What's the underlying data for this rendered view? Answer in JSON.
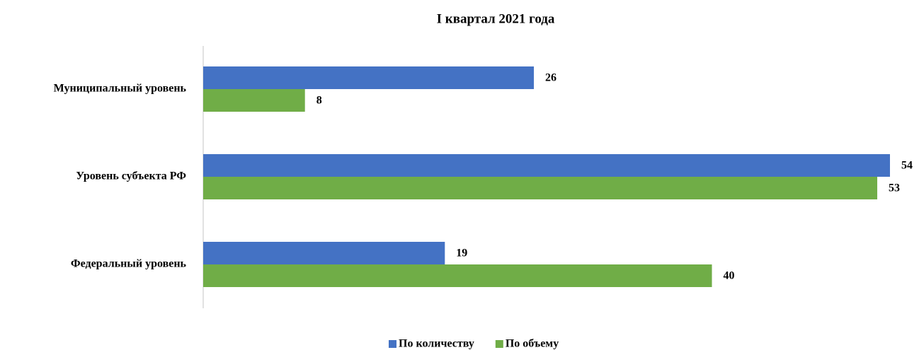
{
  "chart_data": {
    "type": "hbar",
    "title": "I квартал 2021 года",
    "categories": [
      "Муниципальный уровень",
      "Уровень субъекта РФ",
      "Федеральный уровень"
    ],
    "series": [
      {
        "name": "По количеству",
        "color": "#4472c4",
        "values": [
          26,
          54,
          19
        ]
      },
      {
        "name": "По объему",
        "color": "#70ad47",
        "values": [
          8,
          53,
          40
        ]
      }
    ],
    "xlim": [
      0,
      54
    ],
    "legend": "bottom"
  }
}
